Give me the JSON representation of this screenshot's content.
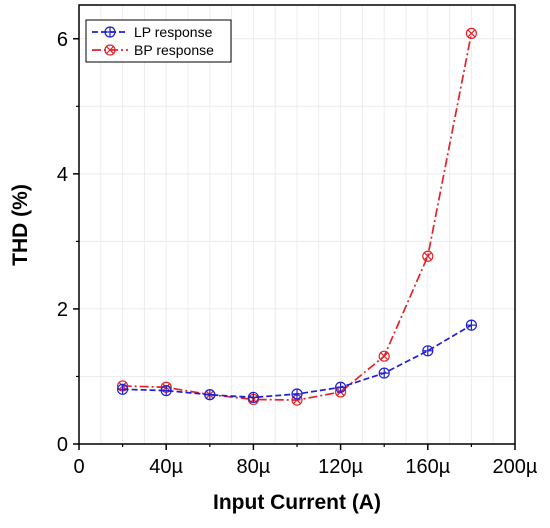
{
  "chart_data": {
    "type": "line",
    "xlabel": "Input Current (A)",
    "ylabel": "THD (%)",
    "xlim": [
      0,
      200
    ],
    "ylim": [
      0,
      6.5
    ],
    "x_ticks": [
      0,
      40,
      80,
      120,
      160,
      200
    ],
    "x_tick_labels": [
      "0",
      "40µ",
      "80µ",
      "120µ",
      "160µ",
      "200µ"
    ],
    "y_ticks": [
      0,
      2,
      4,
      6
    ],
    "y_tick_labels": [
      "0",
      "2",
      "4",
      "6"
    ],
    "grid": true,
    "legend_position": "top-left",
    "x": [
      20,
      40,
      60,
      80,
      100,
      120,
      140,
      160,
      180
    ],
    "series": [
      {
        "name": "LP response",
        "color": "#1f1fd6",
        "line_style": "dashed",
        "marker": "circle-plus",
        "values": [
          0.81,
          0.79,
          0.73,
          0.69,
          0.74,
          0.84,
          1.05,
          1.38,
          1.76
        ]
      },
      {
        "name": "BP response",
        "color": "#e0242a",
        "line_style": "dash-dot",
        "marker": "circle-x",
        "values": [
          0.86,
          0.84,
          0.73,
          0.66,
          0.65,
          0.77,
          1.3,
          2.78,
          6.08
        ]
      }
    ]
  }
}
